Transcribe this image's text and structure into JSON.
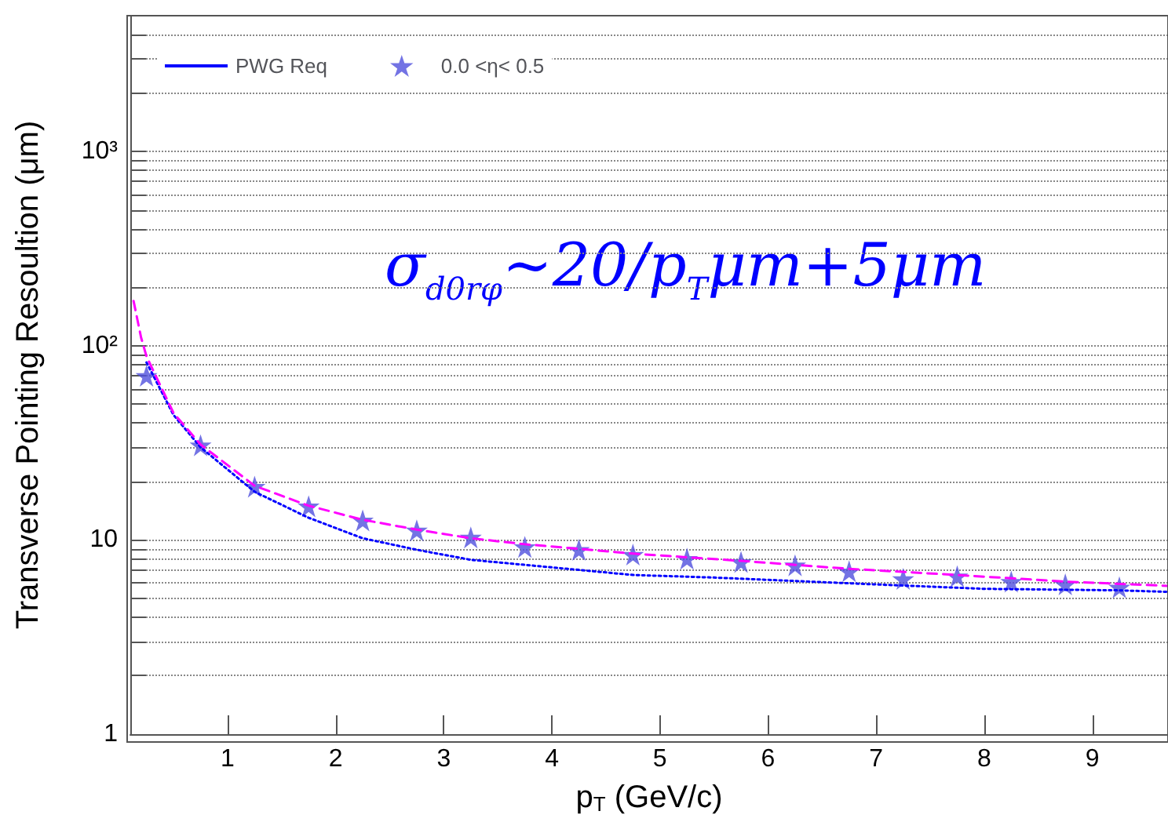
{
  "chart_data": {
    "type": "line",
    "xlabel": "p$_{T}$ (GeV/c)",
    "ylabel": "Transverse Pointing Resoultion (μm)",
    "annotations": [
      "σ$_{d0rφ}$~20/p$_{T}$μm+5μm"
    ],
    "log": "y",
    "xlim": [
      0.1,
      9.7
    ],
    "ylim": [
      1,
      5000
    ],
    "xticks": [
      1,
      2,
      3,
      4,
      5,
      6,
      7,
      8,
      9
    ],
    "yticks": [
      {
        "value": 1,
        "label": "1"
      },
      {
        "value": 2,
        "label": null
      },
      {
        "value": 3,
        "label": null
      },
      {
        "value": 4,
        "label": null
      },
      {
        "value": 5,
        "label": null
      },
      {
        "value": 6,
        "label": null
      },
      {
        "value": 7,
        "label": null
      },
      {
        "value": 8,
        "label": null
      },
      {
        "value": 9,
        "label": null
      },
      {
        "value": 10,
        "label": "10"
      },
      {
        "value": 20,
        "label": null
      },
      {
        "value": 30,
        "label": null
      },
      {
        "value": 40,
        "label": null
      },
      {
        "value": 50,
        "label": null
      },
      {
        "value": 60,
        "label": null
      },
      {
        "value": 70,
        "label": null
      },
      {
        "value": 80,
        "label": null
      },
      {
        "value": 90,
        "label": null
      },
      {
        "value": 100,
        "label": "10²"
      },
      {
        "value": 200,
        "label": null
      },
      {
        "value": 300,
        "label": null
      },
      {
        "value": 400,
        "label": null
      },
      {
        "value": 500,
        "label": null
      },
      {
        "value": 600,
        "label": null
      },
      {
        "value": 700,
        "label": null
      },
      {
        "value": 800,
        "label": null
      },
      {
        "value": 900,
        "label": null
      },
      {
        "value": 1000,
        "label": "10³"
      },
      {
        "value": 2000,
        "label": null
      },
      {
        "value": 3000,
        "label": null
      },
      {
        "value": 4000,
        "label": null
      }
    ],
    "grid": "y",
    "legend": "top left",
    "series": [
      {
        "name": "PWG Req",
        "color": "#0000ff",
        "line_style": "dotted",
        "marker": "none",
        "x": [
          0.25,
          0.5,
          0.75,
          1.25,
          1.75,
          2.25,
          2.75,
          3.25,
          4.75,
          5.5,
          7,
          8,
          9.25,
          9.7
        ],
        "values": [
          82,
          44,
          30,
          17.7,
          13,
          10.2,
          8.9,
          7.9,
          6.6,
          6.4,
          5.9,
          5.6,
          5.5,
          5.4
        ]
      },
      {
        "name": "0.0 <η< 0.5",
        "type": "scatter",
        "color": "#5050dd",
        "marker": "star",
        "x": [
          0.25,
          0.75,
          1.25,
          1.75,
          2.25,
          2.75,
          3.25,
          3.75,
          4.25,
          4.75,
          5.25,
          5.75,
          6.25,
          6.75,
          7.25,
          7.75,
          8.25,
          8.75,
          9.25
        ],
        "values": [
          70,
          30.7,
          18.8,
          14.9,
          12.6,
          11.2,
          10.3,
          9.2,
          8.9,
          8.4,
          8.0,
          7.7,
          7.4,
          6.9,
          6.3,
          6.5,
          6.1,
          5.9,
          5.7
        ]
      },
      {
        "color": "#ff00ff",
        "line_style": "dashed",
        "marker": "none",
        "x": [
          0.13,
          0.2,
          0.25,
          0.5,
          0.75,
          1.25,
          1.75,
          2.25,
          2.75,
          3.25,
          3.75,
          4.25,
          4.75,
          5.75,
          6.75,
          7.75,
          8.75,
          9.7
        ],
        "values": [
          170,
          110,
          88,
          45,
          31,
          19,
          15,
          12.7,
          11.3,
          10.2,
          9.5,
          9.0,
          8.5,
          7.8,
          7.1,
          6.6,
          6.1,
          5.8
        ]
      }
    ]
  }
}
